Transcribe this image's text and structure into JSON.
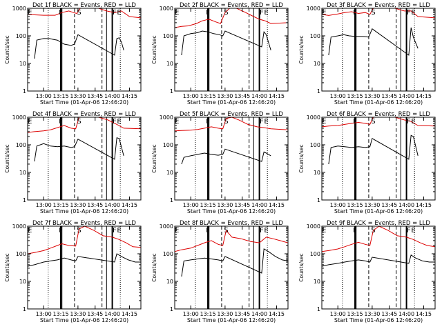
{
  "chart_data": [
    {
      "title": "Det 1f BLACK = Events, RED = LLD",
      "type": "line",
      "y_scale": "log",
      "ylim": [
        1,
        1000
      ],
      "ylabel": "Counts/sec",
      "xlabel": "Start Time (01-Apr-06 12:46:20)",
      "x_ticks": [
        "13:00",
        "13:15",
        "13:30",
        "13:45",
        "14:00",
        "14:15"
      ],
      "y_ticks": [
        "1",
        "10",
        "100",
        "1000"
      ],
      "markers": [
        "E",
        "F",
        "S",
        "F",
        "E"
      ],
      "series": [
        {
          "color": "#000000",
          "x": [
            "12:52",
            "12:54",
            "13:00",
            "13:05",
            "13:08",
            "13:12",
            "13:18",
            "13:24",
            "13:27",
            "13:30",
            "14:02",
            "14:04",
            "14:06",
            "14:08",
            "14:10"
          ],
          "y": [
            15,
            70,
            80,
            80,
            75,
            70,
            50,
            45,
            50,
            110,
            20,
            80,
            85,
            60,
            30
          ]
        },
        {
          "color": "#dd0000",
          "x": [
            "12:46",
            "12:52",
            "13:00",
            "13:10",
            "13:16",
            "13:22",
            "13:26",
            "13:29",
            "13:32",
            "13:40",
            "13:48",
            "13:55",
            "14:02",
            "14:08",
            "14:15",
            "14:25"
          ],
          "y": [
            600,
            580,
            560,
            560,
            700,
            800,
            700,
            650,
            1000,
            1000,
            1000,
            800,
            700,
            800,
            500,
            450
          ]
        }
      ]
    },
    {
      "title": "Det 2f BLACK = Events, RED = LLD",
      "type": "line",
      "y_scale": "log",
      "ylim": [
        1,
        1000
      ],
      "ylabel": "Counts/sec",
      "xlabel": "Start Time (01-Apr-06 12:46:20)",
      "x_ticks": [
        "13:00",
        "13:15",
        "13:30",
        "13:45",
        "14:00",
        "14:15"
      ],
      "y_ticks": [
        "1",
        "10",
        "100",
        "1000"
      ],
      "markers": [
        "E",
        "F",
        "S",
        "F",
        "E"
      ],
      "series": [
        {
          "color": "#000000",
          "x": [
            "12:52",
            "12:54",
            "13:00",
            "13:06",
            "13:10",
            "13:15",
            "13:20",
            "13:25",
            "13:28",
            "13:30",
            "14:02",
            "14:04",
            "14:06",
            "14:10"
          ],
          "y": [
            20,
            100,
            120,
            130,
            150,
            140,
            120,
            110,
            100,
            150,
            40,
            140,
            110,
            30
          ]
        },
        {
          "color": "#dd0000",
          "x": [
            "12:46",
            "12:52",
            "12:58",
            "13:05",
            "13:10",
            "13:16",
            "13:22",
            "13:26",
            "13:30",
            "13:34",
            "13:40",
            "13:48",
            "13:55",
            "14:00",
            "14:05",
            "14:10",
            "14:25"
          ],
          "y": [
            200,
            220,
            230,
            280,
            350,
            400,
            320,
            280,
            700,
            1000,
            1000,
            700,
            500,
            400,
            350,
            280,
            300
          ]
        }
      ]
    },
    {
      "title": "Det 3f BLACK = Events, RED = LLD",
      "type": "line",
      "y_scale": "log",
      "ylim": [
        1,
        1000
      ],
      "ylabel": "Counts/sec",
      "xlabel": "Start Time (01-Apr-06 12:46:20)",
      "x_ticks": [
        "13:00",
        "13:15",
        "13:30",
        "13:45",
        "14:00",
        "14:15"
      ],
      "y_ticks": [
        "1",
        "10",
        "100",
        "1000"
      ],
      "markers": [
        "E",
        "F",
        "S",
        "F",
        "E"
      ],
      "series": [
        {
          "color": "#000000",
          "x": [
            "12:52",
            "12:54",
            "13:00",
            "13:05",
            "13:10",
            "13:16",
            "13:22",
            "13:27",
            "13:30",
            "14:02",
            "14:04",
            "14:06",
            "14:10"
          ],
          "y": [
            20,
            90,
            100,
            110,
            100,
            95,
            95,
            90,
            180,
            20,
            200,
            90,
            35
          ]
        },
        {
          "color": "#dd0000",
          "x": [
            "12:46",
            "12:52",
            "13:00",
            "13:06",
            "13:12",
            "13:18",
            "13:24",
            "13:28",
            "13:31",
            "13:40",
            "13:50",
            "13:58",
            "14:04",
            "14:10",
            "14:25"
          ],
          "y": [
            600,
            550,
            620,
            700,
            750,
            650,
            700,
            600,
            1000,
            1000,
            1000,
            800,
            800,
            500,
            450
          ]
        }
      ]
    },
    {
      "title": "Det 4f BLACK = Events, RED = LLD",
      "type": "line",
      "y_scale": "log",
      "ylim": [
        1,
        1000
      ],
      "ylabel": "Counts/sec",
      "xlabel": "Start Time (01-Apr-06 12:46:20)",
      "x_ticks": [
        "13:00",
        "13:15",
        "13:30",
        "13:45",
        "14:00",
        "14:15"
      ],
      "y_ticks": [
        "1",
        "10",
        "100",
        "1000"
      ],
      "markers": [
        "E",
        "F",
        "S",
        "F",
        "E"
      ],
      "series": [
        {
          "color": "#000000",
          "x": [
            "12:52",
            "12:54",
            "13:00",
            "13:06",
            "13:12",
            "13:18",
            "13:24",
            "13:27",
            "13:30",
            "14:02",
            "14:04",
            "14:06",
            "14:10"
          ],
          "y": [
            25,
            90,
            110,
            90,
            85,
            90,
            80,
            85,
            160,
            30,
            180,
            170,
            40
          ]
        },
        {
          "color": "#dd0000",
          "x": [
            "12:46",
            "12:52",
            "13:00",
            "13:06",
            "13:12",
            "13:18",
            "13:24",
            "13:28",
            "13:31",
            "13:40",
            "13:48",
            "13:56",
            "14:04",
            "14:10",
            "14:25"
          ],
          "y": [
            280,
            300,
            320,
            350,
            420,
            500,
            400,
            380,
            1000,
            1000,
            1000,
            800,
            550,
            400,
            380
          ]
        }
      ]
    },
    {
      "title": "Det 5f BLACK = Events, RED = LLD",
      "type": "line",
      "y_scale": "log",
      "ylim": [
        1,
        1000
      ],
      "ylabel": "Counts/sec",
      "xlabel": "Start Time (01-Apr-06 12:46:20)",
      "x_ticks": [
        "13:00",
        "13:15",
        "13:30",
        "13:45",
        "14:00",
        "14:15"
      ],
      "y_ticks": [
        "1",
        "10",
        "100",
        "1000"
      ],
      "markers": [
        "E",
        "F",
        "S",
        "F",
        "E"
      ],
      "series": [
        {
          "color": "#000000",
          "x": [
            "12:52",
            "12:54",
            "13:00",
            "13:06",
            "13:12",
            "13:18",
            "13:24",
            "13:28",
            "13:30",
            "14:02",
            "14:04",
            "14:06",
            "14:10"
          ],
          "y": [
            20,
            35,
            40,
            45,
            50,
            45,
            42,
            45,
            70,
            25,
            55,
            50,
            40
          ]
        },
        {
          "color": "#dd0000",
          "x": [
            "12:46",
            "12:52",
            "13:00",
            "13:06",
            "13:12",
            "13:18",
            "13:24",
            "13:28",
            "13:31",
            "13:36",
            "13:42",
            "13:50",
            "13:58",
            "14:04",
            "14:10",
            "14:25"
          ],
          "y": [
            320,
            330,
            340,
            360,
            400,
            450,
            400,
            380,
            900,
            1000,
            800,
            550,
            450,
            420,
            380,
            350
          ]
        }
      ]
    },
    {
      "title": "Det 6f BLACK = Events, RED = LLD",
      "type": "line",
      "y_scale": "log",
      "ylim": [
        1,
        1000
      ],
      "ylabel": "Counts/sec",
      "xlabel": "Start Time (01-Apr-06 12:46:20)",
      "x_ticks": [
        "13:00",
        "13:15",
        "13:30",
        "13:45",
        "14:00",
        "14:15"
      ],
      "y_ticks": [
        "1",
        "10",
        "100",
        "1000"
      ],
      "markers": [
        "E",
        "F",
        "S",
        "F",
        "E"
      ],
      "series": [
        {
          "color": "#000000",
          "x": [
            "12:52",
            "12:54",
            "13:00",
            "13:06",
            "13:12",
            "13:18",
            "13:24",
            "13:28",
            "13:30",
            "14:02",
            "14:04",
            "14:06",
            "14:10"
          ],
          "y": [
            20,
            80,
            90,
            85,
            80,
            85,
            80,
            85,
            170,
            30,
            220,
            200,
            40
          ]
        },
        {
          "color": "#dd0000",
          "x": [
            "12:46",
            "12:52",
            "13:00",
            "13:06",
            "13:12",
            "13:18",
            "13:24",
            "13:28",
            "13:31",
            "13:40",
            "13:50",
            "13:58",
            "14:04",
            "14:10",
            "14:25"
          ],
          "y": [
            450,
            480,
            500,
            550,
            600,
            650,
            600,
            550,
            1000,
            1000,
            1000,
            800,
            700,
            500,
            480
          ]
        }
      ]
    },
    {
      "title": "Det 7f BLACK = Events, RED = LLD",
      "type": "line",
      "y_scale": "log",
      "ylim": [
        1,
        1000
      ],
      "ylabel": "Counts/sec",
      "xlabel": "Start Time (01-Apr-06 12:46:20)",
      "x_ticks": [
        "13:00",
        "13:15",
        "13:30",
        "13:45",
        "14:00",
        "14:15"
      ],
      "y_ticks": [
        "1",
        "10",
        "100",
        "1000"
      ],
      "markers": [
        "E",
        "F",
        "S",
        "F",
        "E"
      ],
      "series": [
        {
          "color": "#000000",
          "x": [
            "12:46",
            "12:52",
            "13:00",
            "13:06",
            "13:12",
            "13:18",
            "13:24",
            "13:28",
            "13:30",
            "14:02",
            "14:04",
            "14:08",
            "14:14",
            "14:20",
            "14:25"
          ],
          "y": [
            35,
            40,
            50,
            55,
            60,
            70,
            60,
            55,
            80,
            50,
            100,
            80,
            60,
            50,
            50
          ]
        },
        {
          "color": "#dd0000",
          "x": [
            "12:46",
            "12:52",
            "13:00",
            "13:06",
            "13:12",
            "13:16",
            "13:22",
            "13:28",
            "13:31",
            "13:36",
            "13:44",
            "13:52",
            "14:00",
            "14:06",
            "14:12",
            "14:18",
            "14:25"
          ],
          "y": [
            100,
            110,
            130,
            160,
            200,
            230,
            200,
            190,
            800,
            1000,
            700,
            450,
            400,
            330,
            250,
            180,
            170
          ]
        }
      ]
    },
    {
      "title": "Det 8f BLACK = Events, RED = LLD",
      "type": "line",
      "y_scale": "log",
      "ylim": [
        1,
        1000
      ],
      "ylabel": "Counts/sec",
      "xlabel": "Start Time (01-Apr-06 12:46:20)",
      "x_ticks": [
        "13:00",
        "13:15",
        "13:30",
        "13:45",
        "14:00",
        "14:15"
      ],
      "y_ticks": [
        "1",
        "10",
        "100",
        "1000"
      ],
      "markers": [
        "E",
        "F",
        "S",
        "F",
        "E"
      ],
      "series": [
        {
          "color": "#000000",
          "x": [
            "12:52",
            "12:54",
            "13:00",
            "13:06",
            "13:12",
            "13:18",
            "13:24",
            "13:28",
            "13:30",
            "14:02",
            "14:04",
            "14:08",
            "14:14",
            "14:20",
            "14:25"
          ],
          "y": [
            15,
            55,
            60,
            65,
            70,
            65,
            60,
            55,
            80,
            20,
            150,
            120,
            80,
            60,
            55
          ]
        },
        {
          "color": "#dd0000",
          "x": [
            "12:46",
            "12:52",
            "13:00",
            "13:06",
            "13:12",
            "13:18",
            "13:24",
            "13:28",
            "13:31",
            "13:36",
            "13:44",
            "13:52",
            "14:00",
            "14:06",
            "14:12",
            "14:18",
            "14:25"
          ],
          "y": [
            120,
            140,
            160,
            200,
            250,
            300,
            220,
            200,
            700,
            400,
            350,
            280,
            250,
            400,
            350,
            300,
            250
          ]
        }
      ]
    },
    {
      "title": "Det 9f BLACK = Events, RED = LLD",
      "type": "line",
      "y_scale": "log",
      "ylim": [
        1,
        1000
      ],
      "ylabel": "Counts/sec",
      "xlabel": "Start Time (01-Apr-06 12:46:20)",
      "x_ticks": [
        "13:00",
        "13:15",
        "13:30",
        "13:45",
        "14:00",
        "14:15"
      ],
      "y_ticks": [
        "1",
        "10",
        "100",
        "1000"
      ],
      "markers": [
        "E",
        "F",
        "S",
        "F",
        "E"
      ],
      "series": [
        {
          "color": "#000000",
          "x": [
            "12:46",
            "12:52",
            "13:00",
            "13:06",
            "13:12",
            "13:18",
            "13:24",
            "13:28",
            "13:30",
            "14:02",
            "14:04",
            "14:08",
            "14:14",
            "14:20",
            "14:25"
          ],
          "y": [
            35,
            40,
            45,
            50,
            55,
            60,
            55,
            50,
            75,
            45,
            90,
            70,
            55,
            50,
            50
          ]
        },
        {
          "color": "#dd0000",
          "x": [
            "12:46",
            "12:52",
            "13:00",
            "13:06",
            "13:12",
            "13:18",
            "13:24",
            "13:28",
            "13:31",
            "13:36",
            "13:44",
            "13:52",
            "14:00",
            "14:06",
            "14:12",
            "14:18",
            "14:25"
          ],
          "y": [
            120,
            130,
            150,
            180,
            220,
            260,
            220,
            200,
            700,
            1000,
            700,
            450,
            400,
            330,
            250,
            200,
            180
          ]
        }
      ]
    }
  ]
}
